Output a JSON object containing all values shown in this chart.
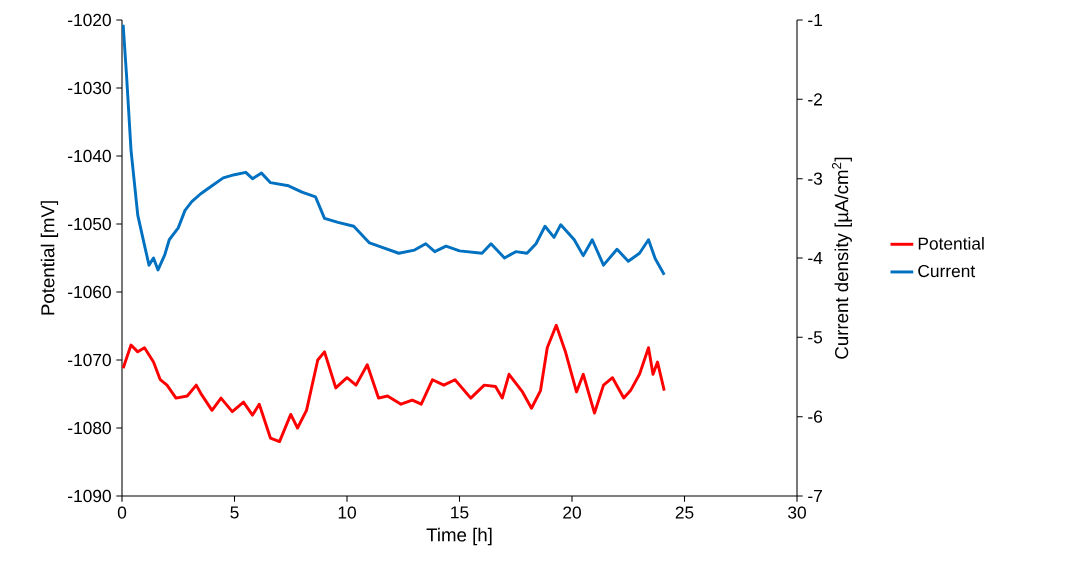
{
  "chart_data": {
    "type": "line",
    "xlabel": "Time [h]",
    "ylabel": "Potential [mV]",
    "y2label": "Current density [µA/cm$^{2}$]",
    "xlim": [
      0,
      30
    ],
    "xticks": [
      0,
      5,
      10,
      15,
      20,
      25,
      30
    ],
    "ylim": [
      -1090,
      -1020
    ],
    "yticks": [
      -1090,
      -1080,
      -1070,
      -1060,
      -1050,
      -1040,
      -1030,
      -1020
    ],
    "y2lim": [
      -7,
      -1
    ],
    "y2ticks": [
      -7,
      -6,
      -5,
      -4,
      -3,
      -2,
      -1
    ],
    "legend": "right",
    "grid": false,
    "marker": "none",
    "line_style": "solid",
    "series": [
      {
        "name": "Potential",
        "color": "#ff0000",
        "x": [
          0.05,
          0.4,
          0.7,
          1.0,
          1.4,
          1.7,
          2.0,
          2.4,
          2.9,
          3.3,
          3.5,
          4.0,
          4.4,
          4.9,
          5.4,
          5.8,
          6.1,
          6.6,
          7.0,
          7.5,
          7.8,
          8.2,
          8.7,
          9.0,
          9.5,
          10.0,
          10.4,
          10.9,
          11.4,
          11.8,
          12.4,
          12.9,
          13.3,
          13.8,
          14.3,
          14.8,
          15.5,
          16.1,
          16.6,
          16.9,
          17.2,
          17.8,
          18.2,
          18.6,
          18.9,
          19.3,
          19.7,
          20.2,
          20.5,
          21.0,
          21.4,
          21.8,
          22.3,
          22.6,
          23.0,
          23.4,
          23.6,
          23.8,
          24.1
        ],
        "values": [
          -1071.2,
          -1067.8,
          -1068.8,
          -1068.2,
          -1070.3,
          -1072.9,
          -1073.7,
          -1075.6,
          -1075.3,
          -1073.7,
          -1074.9,
          -1077.4,
          -1075.6,
          -1077.6,
          -1076.2,
          -1078.1,
          -1076.5,
          -1081.5,
          -1082.0,
          -1078.0,
          -1080.0,
          -1077.4,
          -1070.0,
          -1068.8,
          -1074.1,
          -1072.6,
          -1073.7,
          -1070.7,
          -1075.6,
          -1075.3,
          -1076.5,
          -1075.9,
          -1076.5,
          -1072.9,
          -1073.7,
          -1072.9,
          -1075.6,
          -1073.7,
          -1073.9,
          -1075.6,
          -1072.1,
          -1074.7,
          -1077.1,
          -1074.5,
          -1068.2,
          -1064.9,
          -1068.7,
          -1074.7,
          -1072.1,
          -1077.8,
          -1073.7,
          -1072.6,
          -1075.6,
          -1074.5,
          -1072.1,
          -1068.2,
          -1072.1,
          -1070.3,
          -1074.5
        ]
      },
      {
        "name": "Current",
        "color": "#0070c0",
        "axis": "y2",
        "x": [
          0.05,
          0.2,
          0.4,
          0.7,
          1.0,
          1.2,
          1.4,
          1.6,
          1.9,
          2.1,
          2.5,
          2.8,
          3.1,
          3.5,
          4.0,
          4.5,
          5.0,
          5.5,
          5.8,
          6.2,
          6.6,
          7.4,
          8.0,
          8.6,
          9.0,
          9.6,
          10.3,
          11.0,
          11.5,
          12.3,
          13.0,
          13.5,
          13.9,
          14.4,
          15.0,
          16.0,
          16.4,
          17.0,
          17.5,
          18.0,
          18.4,
          18.8,
          19.2,
          19.5,
          20.1,
          20.5,
          20.9,
          21.4,
          22.0,
          22.5,
          23.0,
          23.4,
          23.7,
          24.1
        ],
        "values": [
          -1.06,
          -1.69,
          -2.64,
          -3.46,
          -3.84,
          -4.09,
          -4.0,
          -4.15,
          -3.96,
          -3.77,
          -3.62,
          -3.4,
          -3.29,
          -3.19,
          -3.09,
          -2.99,
          -2.95,
          -2.92,
          -3.0,
          -2.93,
          -3.05,
          -3.09,
          -3.17,
          -3.23,
          -3.5,
          -3.55,
          -3.6,
          -3.81,
          -3.86,
          -3.94,
          -3.9,
          -3.82,
          -3.92,
          -3.85,
          -3.91,
          -3.94,
          -3.82,
          -4.0,
          -3.92,
          -3.94,
          -3.82,
          -3.6,
          -3.74,
          -3.58,
          -3.77,
          -3.97,
          -3.77,
          -4.09,
          -3.89,
          -4.04,
          -3.94,
          -3.77,
          -4.01,
          -4.21
        ]
      }
    ]
  }
}
